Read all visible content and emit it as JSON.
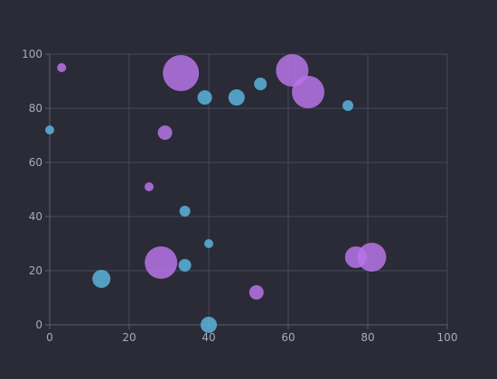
{
  "chart_data": {
    "type": "scatter",
    "title": "",
    "xlabel": "",
    "ylabel": "",
    "xlim": [
      0,
      100
    ],
    "ylim": [
      0,
      100
    ],
    "x_ticks": [
      0,
      20,
      40,
      60,
      80,
      100
    ],
    "y_ticks": [
      0,
      20,
      40,
      60,
      80,
      100
    ],
    "grid": true,
    "legend": "none",
    "colors": {
      "background": "#2b2a37",
      "grid": "#454a5c",
      "tick_label": "#a7abba",
      "series_blue": "#5ab4dc",
      "series_purple": "#b774e6"
    },
    "series": [
      {
        "color": "#5ab4dc",
        "points": [
          {
            "x": 0,
            "y": 72,
            "size": 5
          },
          {
            "x": 13,
            "y": 17,
            "size": 10
          },
          {
            "x": 34,
            "y": 22,
            "size": 7
          },
          {
            "x": 34,
            "y": 42,
            "size": 6
          },
          {
            "x": 39,
            "y": 84,
            "size": 8
          },
          {
            "x": 40,
            "y": 0,
            "size": 9
          },
          {
            "x": 40,
            "y": 30,
            "size": 5
          },
          {
            "x": 47,
            "y": 84,
            "size": 9
          },
          {
            "x": 53,
            "y": 89,
            "size": 7
          },
          {
            "x": 75,
            "y": 81,
            "size": 6
          }
        ]
      },
      {
        "color": "#b774e6",
        "points": [
          {
            "x": 3,
            "y": 95,
            "size": 5
          },
          {
            "x": 25,
            "y": 51,
            "size": 5
          },
          {
            "x": 28,
            "y": 23,
            "size": 18
          },
          {
            "x": 29,
            "y": 71,
            "size": 8
          },
          {
            "x": 33,
            "y": 93,
            "size": 20
          },
          {
            "x": 52,
            "y": 12,
            "size": 8
          },
          {
            "x": 61,
            "y": 94,
            "size": 18
          },
          {
            "x": 65,
            "y": 86,
            "size": 18
          },
          {
            "x": 77,
            "y": 25,
            "size": 12
          },
          {
            "x": 81,
            "y": 25,
            "size": 16
          }
        ]
      }
    ]
  }
}
